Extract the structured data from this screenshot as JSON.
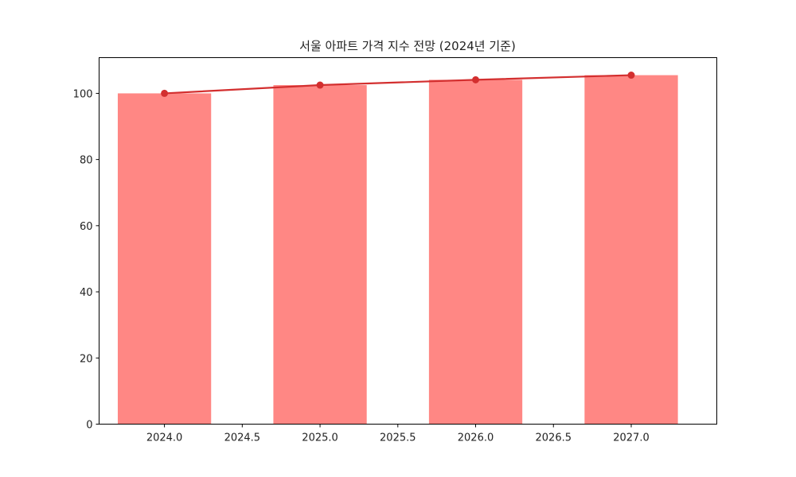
{
  "chart_data": {
    "type": "bar",
    "title": "서울 아파트 가격 지수 전망 (2024년 기준)",
    "xlabel": "",
    "ylabel": "",
    "categories": [
      2024,
      2025,
      2026,
      2027
    ],
    "series": [
      {
        "name": "price_index_bar",
        "type": "bar",
        "color": "#ff8784",
        "bar_width": 0.6,
        "values": [
          100.0,
          102.5,
          104.1,
          105.5
        ]
      },
      {
        "name": "price_index_line",
        "type": "line",
        "color": "#d32f2f",
        "marker": "circle",
        "values": [
          100.0,
          102.5,
          104.1,
          105.5
        ]
      }
    ],
    "xlim": [
      2023.58,
      2027.55
    ],
    "ylim": [
      0,
      110.8
    ],
    "xticks": [
      "2024.0",
      "2024.5",
      "2025.0",
      "2025.5",
      "2026.0",
      "2026.5",
      "2027.0"
    ],
    "yticks": [
      "0",
      "20",
      "40",
      "60",
      "80",
      "100"
    ],
    "grid": false,
    "legend": null
  }
}
